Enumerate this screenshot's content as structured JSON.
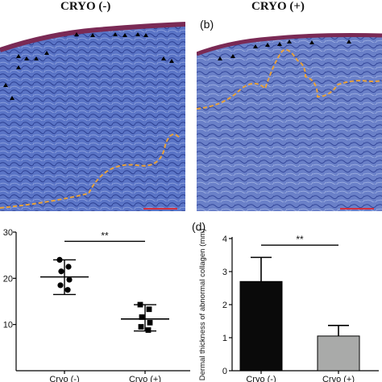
{
  "panels": {
    "a": {
      "title": "CRYO (-)"
    },
    "b": {
      "title": "CRYO (+)",
      "label": "(b)"
    },
    "c": {
      "label": ""
    },
    "d": {
      "label": "(d)"
    }
  },
  "colors": {
    "stain_blue": "#5a74c6",
    "epidermis": "#7a2a55",
    "boundary": "#e8a23a",
    "scale_bar": "#d03040",
    "bar_cryo_minus": "#0a0a0a",
    "bar_cryo_plus": "#a9aaa9"
  },
  "chart_data": [
    {
      "type": "scatter",
      "panel": "c",
      "categories": [
        "Cryo (-)",
        "Cryo (+)"
      ],
      "ylabel": "",
      "ylim": [
        0,
        30
      ],
      "yticks": [
        "10",
        "20",
        "30"
      ],
      "significance": "**",
      "series": [
        {
          "category": "Cryo (-)",
          "marker": "circle",
          "points": [
            24,
            22.5,
            21.5,
            19.7,
            18.5,
            17.5
          ],
          "mean": 20.3,
          "sd_upper": 24.0,
          "sd_lower": 16.5
        },
        {
          "category": "Cryo (+)",
          "marker": "square",
          "points": [
            14.3,
            13.3,
            11.6,
            10.4,
            9.5,
            8.8
          ],
          "mean": 11.2,
          "sd_upper": 14.3,
          "sd_lower": 8.6
        }
      ]
    },
    {
      "type": "bar",
      "panel": "d",
      "categories": [
        "Cryo (-)",
        "Cryo (+)"
      ],
      "values": [
        2.7,
        1.05
      ],
      "errors_upper": [
        3.43,
        1.37
      ],
      "ylabel": "Dermal thickness of abnormal collagen (mm)",
      "ylim": [
        0,
        4
      ],
      "yticks": [
        "0",
        "1",
        "2",
        "3",
        "4"
      ],
      "significance": "**"
    }
  ]
}
